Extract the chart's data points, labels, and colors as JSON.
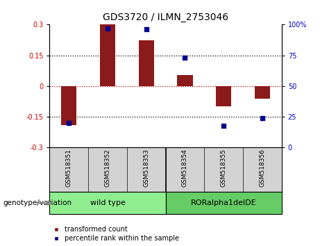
{
  "title": "GDS3720 / ILMN_2753046",
  "samples": [
    "GSM518351",
    "GSM518352",
    "GSM518353",
    "GSM518354",
    "GSM518355",
    "GSM518356"
  ],
  "red_bars": [
    -0.19,
    0.305,
    0.225,
    0.053,
    -0.1,
    -0.063
  ],
  "blue_dots": [
    20,
    97,
    96,
    73,
    18,
    24
  ],
  "ylim": [
    -0.3,
    0.3
  ],
  "yticks_left": [
    -0.3,
    -0.15,
    0,
    0.15,
    0.3
  ],
  "yticks_right": [
    0,
    25,
    50,
    75,
    100
  ],
  "bar_color": "#8B1A1A",
  "dot_color": "#00008B",
  "zero_line_color": "#CC0000",
  "bg_color": "#FFFFFF",
  "sample_box_color": "#D3D3D3",
  "group1_color": "#90EE90",
  "group2_color": "#66CC66",
  "group1_label": "wild type",
  "group2_label": "RORalpha1delDE",
  "label_transformed": "transformed count",
  "label_percentile": "percentile rank within the sample",
  "genotype_label": "genotype/variation",
  "title_fontsize": 10,
  "tick_fontsize": 7,
  "sample_fontsize": 6.5,
  "legend_fontsize": 7,
  "geno_fontsize": 7.5
}
